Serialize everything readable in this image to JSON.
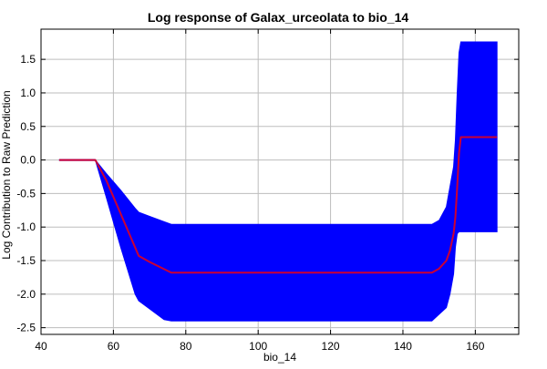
{
  "chart_data": {
    "type": "area",
    "title": "Log response of Galax_urceolata to bio_14",
    "xlabel": "bio_14",
    "ylabel": "Log Contribution to Raw Prediction",
    "xlim": [
      40,
      172
    ],
    "ylim": [
      -2.6,
      1.95
    ],
    "xticks": [
      40,
      60,
      80,
      100,
      120,
      140,
      160
    ],
    "yticks": [
      -2.5,
      -2.0,
      -1.5,
      -1.0,
      -0.5,
      0.0,
      0.5,
      1.0,
      1.5
    ],
    "ytick_labels": [
      "-2.5",
      "-2.0",
      "-1.5",
      "-1.0",
      "-0.5",
      "0.0",
      "0.5",
      "1.0",
      "1.5"
    ],
    "grid": true,
    "series": [
      {
        "role": "confidence band",
        "color": "#0000ff",
        "x": [
          55,
          58,
          62,
          66,
          67,
          70,
          74,
          76,
          80,
          100,
          120,
          140,
          148,
          150,
          152,
          153,
          154,
          154.5,
          155,
          155.5,
          156,
          160,
          166
        ],
        "upper": [
          0.0,
          -0.2,
          -0.45,
          -0.72,
          -0.78,
          -0.84,
          -0.92,
          -0.96,
          -0.96,
          -0.96,
          -0.96,
          -0.96,
          -0.96,
          -0.9,
          -0.7,
          -0.4,
          -0.1,
          0.3,
          1.0,
          1.6,
          1.76,
          1.76,
          1.76
        ],
        "lower": [
          0.0,
          -0.55,
          -1.3,
          -2.0,
          -2.1,
          -2.22,
          -2.38,
          -2.4,
          -2.4,
          -2.4,
          -2.4,
          -2.4,
          -2.4,
          -2.3,
          -2.2,
          -2.0,
          -1.7,
          -1.3,
          -1.1,
          -1.07,
          -1.07,
          -1.07,
          -1.07
        ],
        "pre_x": [
          45,
          55
        ],
        "pre_y": [
          0.0,
          0.0
        ]
      },
      {
        "role": "mean response",
        "color": "#cc0033",
        "x": [
          45,
          55,
          58,
          62,
          67,
          70,
          76,
          100,
          120,
          140,
          148,
          150,
          152,
          153,
          154,
          154.5,
          155,
          155.5,
          156,
          160,
          166
        ],
        "y": [
          0.0,
          0.0,
          -0.3,
          -0.8,
          -1.43,
          -1.52,
          -1.68,
          -1.68,
          -1.68,
          -1.68,
          -1.68,
          -1.62,
          -1.5,
          -1.35,
          -1.1,
          -0.85,
          -0.4,
          0.1,
          0.34,
          0.34,
          0.34
        ]
      }
    ]
  }
}
